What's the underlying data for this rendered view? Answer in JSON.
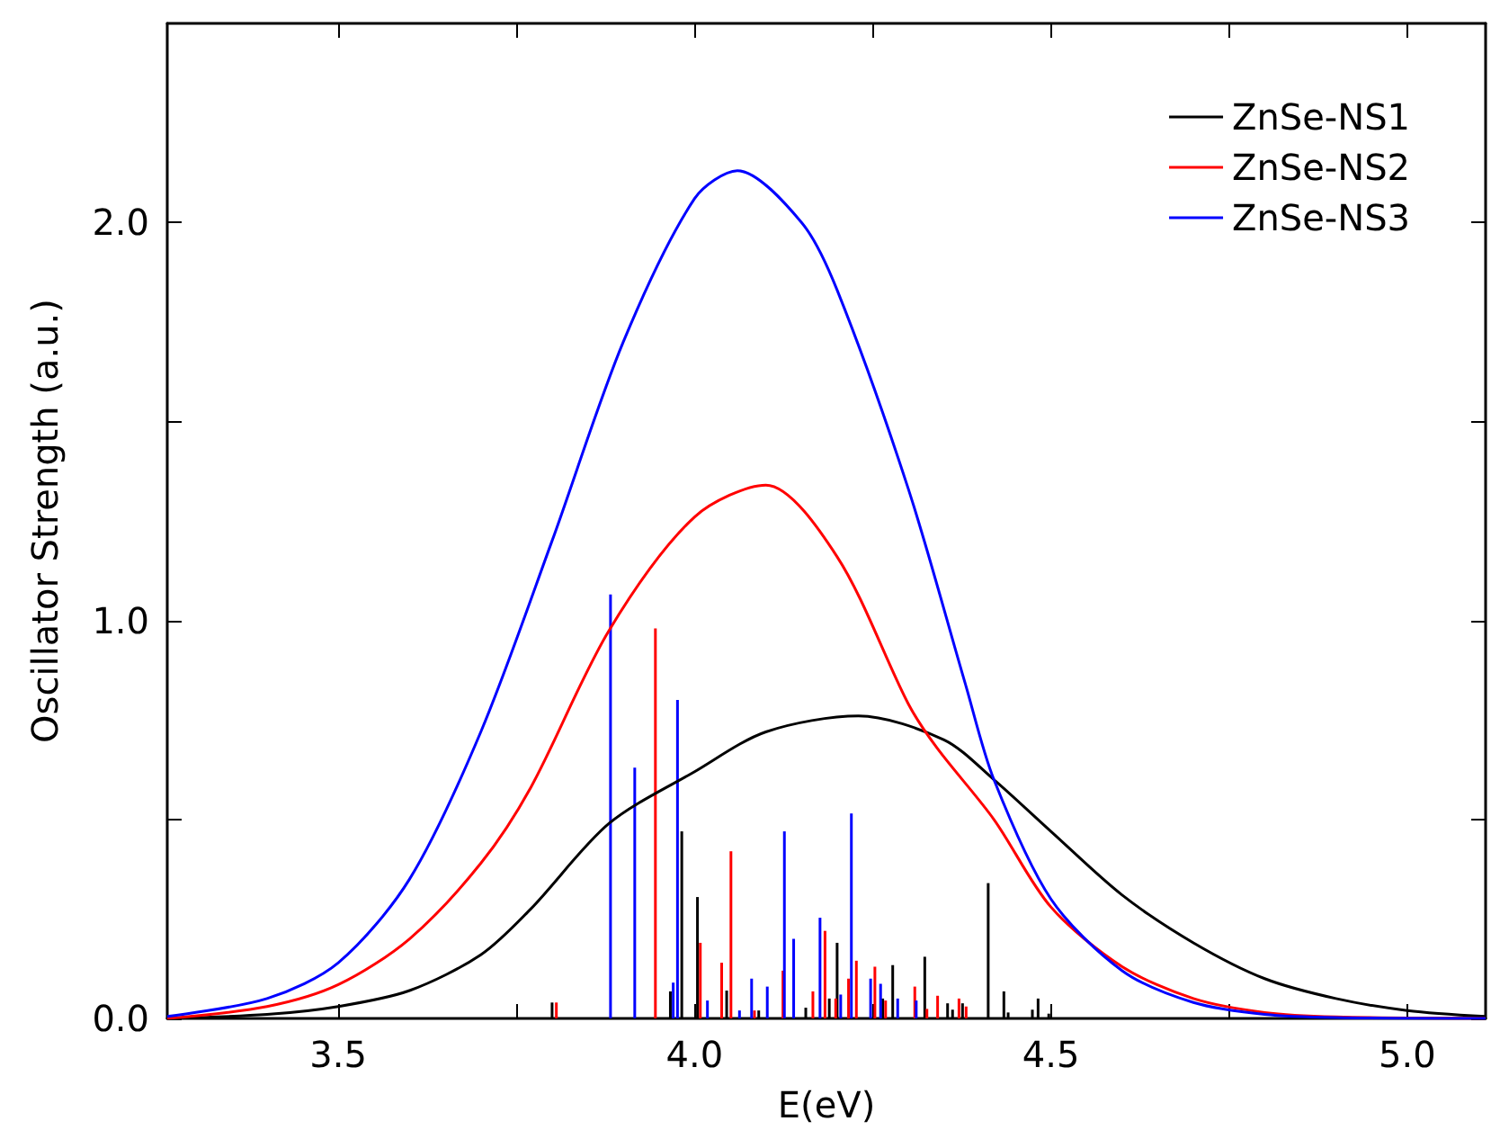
{
  "chart_data": {
    "type": "line",
    "xlabel": "E(eV)",
    "ylabel": "Oscillator Strength (a.u.)",
    "xlim": [
      3.26,
      5.11
    ],
    "ylim": [
      0,
      2.5
    ],
    "xticks": [
      3.5,
      {
        "value": 3.75,
        "label": null
      },
      {
        "value": 4,
        "label": "4.0"
      },
      {
        "value": 4.25,
        "label": null
      },
      4.5,
      {
        "value": 4.75,
        "label": null
      },
      {
        "value": 5,
        "label": "5.0"
      }
    ],
    "yticks": [
      {
        "value": 0,
        "label": "0.0"
      },
      {
        "value": 0.5,
        "label": null
      },
      {
        "value": 1,
        "label": "1.0"
      },
      {
        "value": 1.5,
        "label": null
      },
      {
        "value": 2,
        "label": "2.0"
      }
    ],
    "legend": "top right",
    "grid": false,
    "series": [
      {
        "name": "ZnSe-NS1",
        "color": "#000000",
        "x": [
          3.26,
          3.4,
          3.5,
          3.6,
          3.7,
          3.77,
          3.88,
          4.0,
          4.1,
          4.23,
          4.35,
          4.42,
          4.5,
          4.6,
          4.7,
          4.8,
          4.9,
          5.0,
          5.11
        ],
        "values": [
          0.0,
          0.01,
          0.03,
          0.07,
          0.16,
          0.275,
          0.49,
          0.62,
          0.72,
          0.76,
          0.7,
          0.6,
          0.47,
          0.31,
          0.19,
          0.1,
          0.05,
          0.02,
          0.005
        ]
      },
      {
        "name": "ZnSe-NS2",
        "color": "#ff0000",
        "x": [
          3.26,
          3.4,
          3.5,
          3.6,
          3.7,
          3.77,
          3.88,
          4.0,
          4.1,
          4.2,
          4.3,
          4.34,
          4.42,
          4.5,
          4.6,
          4.7,
          4.8,
          4.9,
          5.11
        ],
        "values": [
          0.0,
          0.03,
          0.085,
          0.2,
          0.39,
          0.58,
          0.975,
          1.26,
          1.34,
          1.16,
          0.79,
          0.68,
          0.5,
          0.28,
          0.13,
          0.05,
          0.015,
          0.004,
          0.0
        ]
      },
      {
        "name": "ZnSe-NS3",
        "color": "#0000ff",
        "x": [
          3.26,
          3.4,
          3.5,
          3.6,
          3.7,
          3.8,
          3.9,
          4.0,
          4.06,
          4.15,
          4.2,
          4.3,
          4.38,
          4.42,
          4.5,
          4.6,
          4.7,
          4.8,
          4.9,
          5.11
        ],
        "values": [
          0.005,
          0.05,
          0.14,
          0.35,
          0.72,
          1.2,
          1.7,
          2.06,
          2.13,
          2.0,
          1.83,
          1.33,
          0.84,
          0.6,
          0.3,
          0.12,
          0.04,
          0.01,
          0.002,
          0.0
        ]
      },
      {
        "type": "bar",
        "color": "#000000",
        "x": [
          3.8,
          3.966,
          3.982,
          4.004,
          4.045,
          4.09,
          4.156,
          4.189,
          4.2,
          4.264,
          4.278,
          4.323,
          4.355,
          4.362,
          4.376,
          4.412,
          4.434,
          4.44,
          4.474,
          4.482,
          4.497
        ],
        "values": [
          0.04,
          0.068,
          0.47,
          0.305,
          0.07,
          0.02,
          0.027,
          0.05,
          0.19,
          0.05,
          0.134,
          0.155,
          0.038,
          0.022,
          0.038,
          0.34,
          0.068,
          0.015,
          0.022,
          0.05,
          0.012
        ]
      },
      {
        "type": "bar",
        "color": "#ff0000",
        "x": [
          3.806,
          3.945,
          4.008,
          4.038,
          4.051,
          4.084,
          4.124,
          4.166,
          4.183,
          4.198,
          4.216,
          4.227,
          4.253,
          4.268,
          4.309,
          4.326,
          4.341,
          4.371,
          4.381
        ],
        "values": [
          0.04,
          0.98,
          0.19,
          0.14,
          0.42,
          0.02,
          0.12,
          0.068,
          0.22,
          0.05,
          0.1,
          0.145,
          0.13,
          0.045,
          0.08,
          0.024,
          0.057,
          0.05,
          0.03
        ]
      },
      {
        "type": "bar",
        "color": "#0000ff",
        "x": [
          3.882,
          3.916,
          3.97,
          3.976,
          4.018,
          4.063,
          4.08,
          4.102,
          4.126,
          4.139,
          4.176,
          4.205,
          4.22,
          4.247,
          4.261,
          4.285,
          4.311
        ],
        "values": [
          1.065,
          0.63,
          0.09,
          0.8,
          0.045,
          0.02,
          0.1,
          0.08,
          0.47,
          0.2,
          0.253,
          0.06,
          0.515,
          0.1,
          0.087,
          0.05,
          0.045
        ]
      }
    ]
  }
}
